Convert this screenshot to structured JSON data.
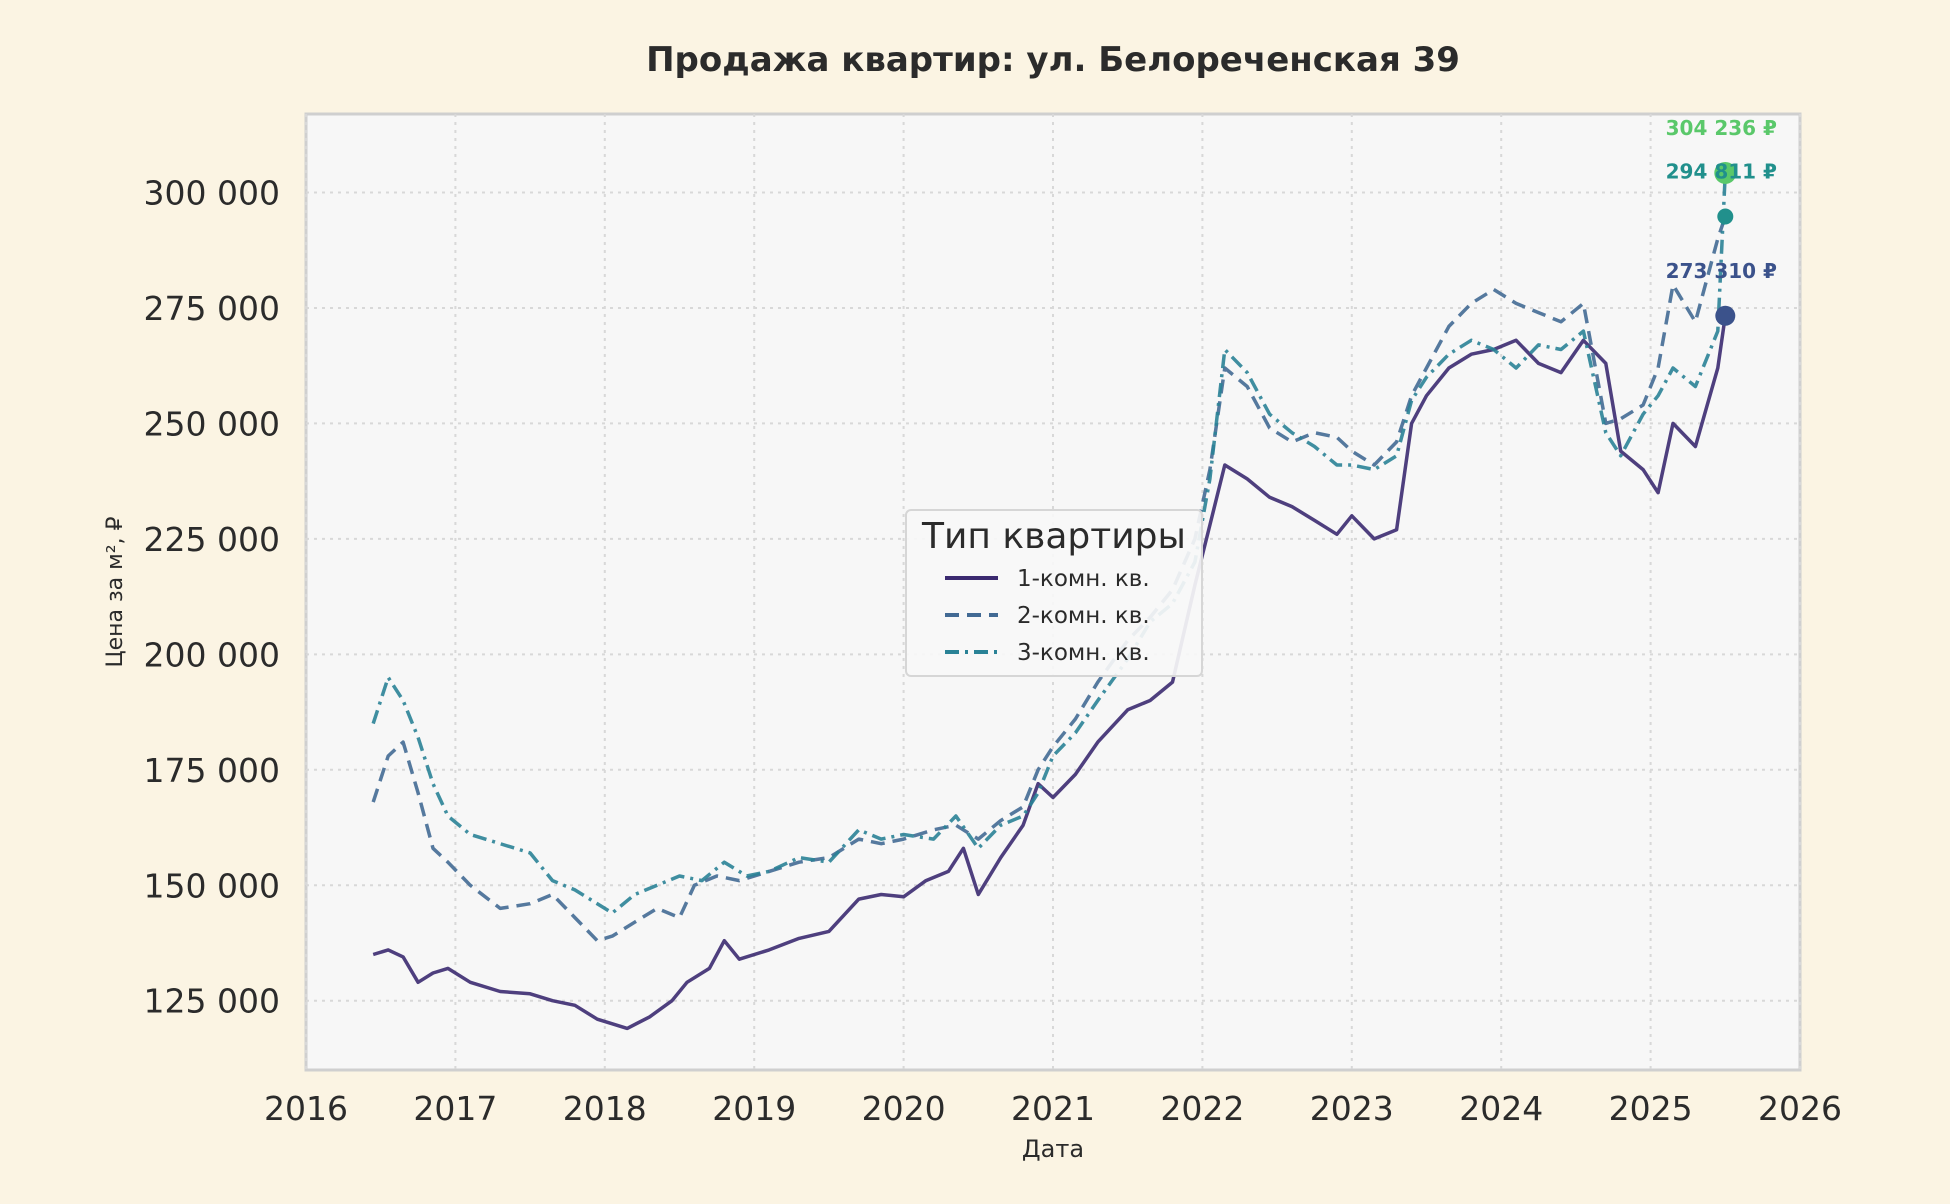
{
  "chart_data": {
    "type": "line",
    "title": "Продажа квартир: ул. Белореченская 39",
    "xlabel": "Дата",
    "ylabel": "Цена за м², ₽",
    "xlim": [
      2016,
      2026
    ],
    "ylim": [
      110000,
      317000
    ],
    "x_ticks": [
      "2016",
      "2017",
      "2018",
      "2019",
      "2020",
      "2021",
      "2022",
      "2023",
      "2024",
      "2025",
      "2026"
    ],
    "y_ticks": [
      "125 000",
      "150 000",
      "175 000",
      "200 000",
      "225 000",
      "250 000",
      "275 000",
      "300 000"
    ],
    "grid": true,
    "legend": {
      "title": "Тип квартиры",
      "placement": "center"
    },
    "end_labels": [
      "304 236 ₽",
      "294 811 ₽",
      "273 310 ₽"
    ],
    "series": [
      {
        "name": "1-комн. кв.",
        "color": "#3b2a70",
        "dash": "solid",
        "x": [
          2016.45,
          2016.55,
          2016.65,
          2016.75,
          2016.85,
          2016.95,
          2017.1,
          2017.3,
          2017.5,
          2017.65,
          2017.8,
          2017.95,
          2018.05,
          2018.15,
          2018.3,
          2018.45,
          2018.55,
          2018.7,
          2018.8,
          2018.9,
          2019.1,
          2019.3,
          2019.5,
          2019.7,
          2019.85,
          2020.0,
          2020.15,
          2020.3,
          2020.4,
          2020.5,
          2020.65,
          2020.8,
          2020.9,
          2021.0,
          2021.15,
          2021.3,
          2021.5,
          2021.65,
          2021.8,
          2021.95,
          2022.05,
          2022.15,
          2022.3,
          2022.45,
          2022.6,
          2022.75,
          2022.9,
          2023.0,
          2023.15,
          2023.3,
          2023.4,
          2023.5,
          2023.65,
          2023.8,
          2023.95,
          2024.1,
          2024.25,
          2024.4,
          2024.55,
          2024.7,
          2024.8,
          2024.95,
          2025.05,
          2025.15,
          2025.3,
          2025.45,
          2025.5
        ],
        "y": [
          135000,
          136000,
          134500,
          129000,
          131000,
          132000,
          129000,
          127000,
          126500,
          125000,
          124000,
          121000,
          120000,
          119000,
          121500,
          125000,
          129000,
          132000,
          138000,
          134000,
          136000,
          138500,
          140000,
          147000,
          148000,
          147500,
          151000,
          153000,
          158000,
          148000,
          156000,
          163000,
          172000,
          169000,
          174000,
          181000,
          188000,
          190000,
          194000,
          215000,
          228000,
          241000,
          238000,
          234000,
          232000,
          229000,
          226000,
          230000,
          225000,
          227000,
          250000,
          256000,
          262000,
          265000,
          266000,
          268000,
          263000,
          261000,
          268000,
          263000,
          244000,
          240000,
          235000,
          250000,
          245000,
          262000,
          273310
        ]
      },
      {
        "name": "2-комн. кв.",
        "color": "#426a94",
        "dash": "dashed",
        "x": [
          2016.45,
          2016.55,
          2016.65,
          2016.75,
          2016.85,
          2016.95,
          2017.1,
          2017.3,
          2017.5,
          2017.65,
          2017.8,
          2017.95,
          2018.05,
          2018.2,
          2018.35,
          2018.5,
          2018.6,
          2018.75,
          2018.9,
          2019.1,
          2019.3,
          2019.5,
          2019.7,
          2019.85,
          2020.0,
          2020.2,
          2020.35,
          2020.5,
          2020.65,
          2020.8,
          2020.9,
          2021.0,
          2021.15,
          2021.3,
          2021.5,
          2021.65,
          2021.8,
          2021.95,
          2022.05,
          2022.15,
          2022.3,
          2022.45,
          2022.6,
          2022.75,
          2022.9,
          2023.0,
          2023.15,
          2023.3,
          2023.4,
          2023.5,
          2023.65,
          2023.8,
          2023.95,
          2024.1,
          2024.25,
          2024.4,
          2024.55,
          2024.7,
          2024.8,
          2024.95,
          2025.05,
          2025.15,
          2025.3,
          2025.45,
          2025.5
        ],
        "y": [
          168000,
          178000,
          181000,
          170000,
          158000,
          155000,
          150000,
          145000,
          146000,
          148000,
          143000,
          138000,
          139000,
          142000,
          145000,
          143000,
          150000,
          152000,
          151000,
          153000,
          155000,
          156000,
          160000,
          159000,
          160000,
          162000,
          163000,
          160000,
          164000,
          167000,
          175000,
          180000,
          186000,
          194000,
          203000,
          208000,
          214000,
          225000,
          240000,
          262000,
          258000,
          249000,
          246000,
          248000,
          247000,
          244000,
          241000,
          246000,
          256000,
          262000,
          271000,
          276000,
          279000,
          276000,
          274000,
          272000,
          276000,
          250000,
          251000,
          254000,
          262000,
          280000,
          272000,
          290000,
          294811
        ]
      },
      {
        "name": "3-комн. кв.",
        "color": "#2a8296",
        "dash": "dashdot",
        "x": [
          2016.45,
          2016.55,
          2016.65,
          2016.75,
          2016.85,
          2016.95,
          2017.1,
          2017.3,
          2017.5,
          2017.65,
          2017.8,
          2017.95,
          2018.05,
          2018.2,
          2018.35,
          2018.5,
          2018.65,
          2018.8,
          2018.95,
          2019.1,
          2019.3,
          2019.5,
          2019.7,
          2019.85,
          2020.0,
          2020.2,
          2020.35,
          2020.5,
          2020.65,
          2020.8,
          2020.9,
          2021.0,
          2021.15,
          2021.3,
          2021.5,
          2021.65,
          2021.8,
          2021.95,
          2022.05,
          2022.15,
          2022.3,
          2022.45,
          2022.6,
          2022.75,
          2022.9,
          2023.0,
          2023.15,
          2023.3,
          2023.4,
          2023.5,
          2023.65,
          2023.8,
          2023.95,
          2024.1,
          2024.25,
          2024.4,
          2024.55,
          2024.7,
          2024.8,
          2024.95,
          2025.05,
          2025.15,
          2025.3,
          2025.45,
          2025.5
        ],
        "y": [
          185000,
          195000,
          190000,
          182000,
          172000,
          165000,
          161000,
          159000,
          157000,
          151000,
          149000,
          146000,
          144000,
          148000,
          150000,
          152000,
          151000,
          155000,
          152000,
          153000,
          156000,
          155000,
          162000,
          160000,
          161000,
          160000,
          165000,
          158000,
          163000,
          165000,
          170000,
          178000,
          183000,
          190000,
          199000,
          207000,
          211000,
          220000,
          238000,
          266000,
          261000,
          252000,
          248000,
          245000,
          241000,
          241000,
          240000,
          243000,
          255000,
          260000,
          265000,
          268000,
          266000,
          262000,
          267000,
          266000,
          270000,
          248000,
          243000,
          252000,
          256000,
          262000,
          258000,
          270000,
          304236
        ]
      }
    ]
  }
}
